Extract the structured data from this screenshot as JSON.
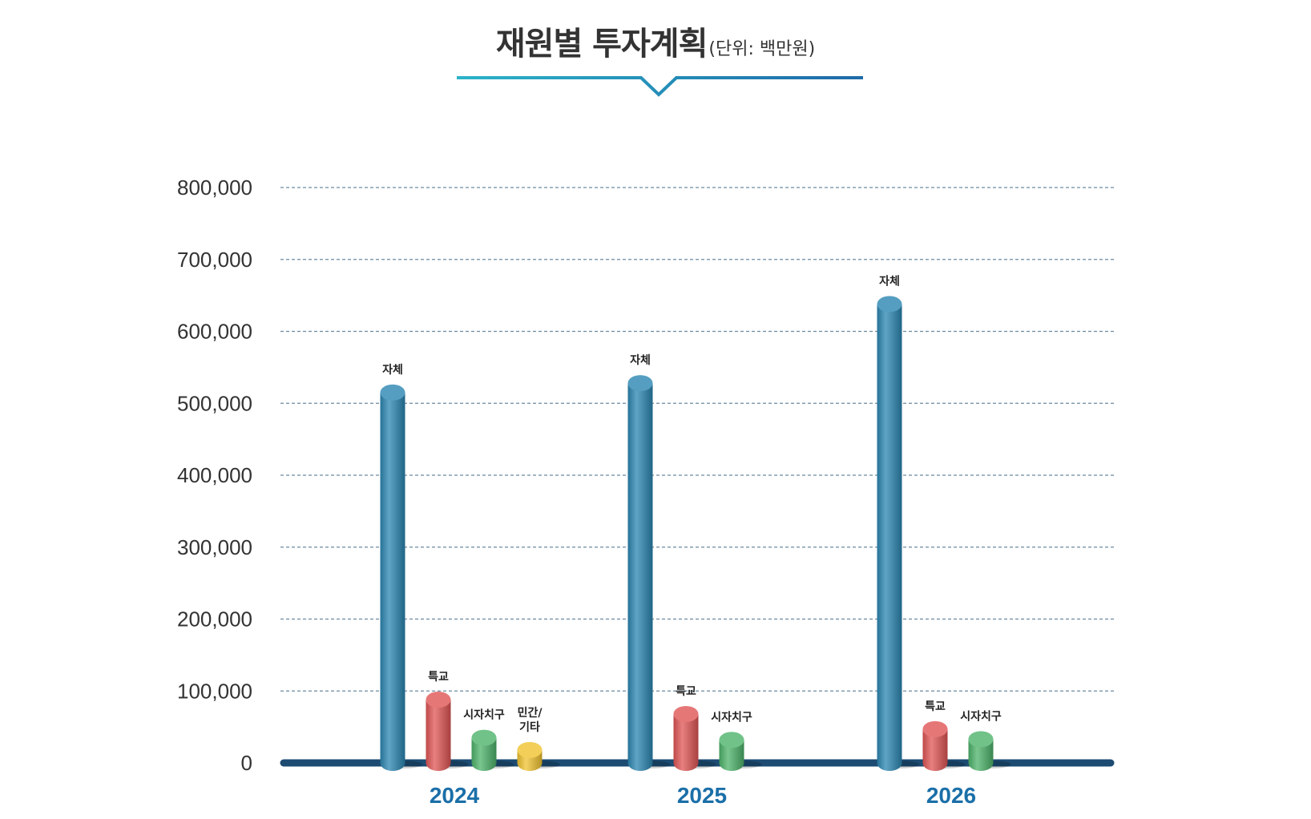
{
  "title": "재원별 투자계획",
  "unit": "(단위: 백만원)",
  "colors": {
    "title_underline_left": "#2bb3c9",
    "title_underline_right": "#1f6aa8",
    "baseline": "#1d4b72",
    "grid": "#6b8aa0",
    "year_label": "#1b6fa8",
    "자체": "#2b86b2",
    "특교": "#e05555",
    "시자치구": "#4db36a",
    "민간/기타": "#f0c330"
  },
  "chart_data": {
    "type": "bar",
    "categories": [
      "2024",
      "2025",
      "2026"
    ],
    "yticks": [
      "800,000",
      "700,000",
      "600,000",
      "500,000",
      "400,000",
      "300,000",
      "200,000",
      "100,000",
      "0"
    ],
    "ylim": [
      0,
      800000
    ],
    "grid": true,
    "groups": [
      {
        "year": "2024",
        "bars": [
          {
            "label": "자체",
            "value": 515000,
            "color_key": "자체"
          },
          {
            "label": "특교",
            "value": 88000,
            "color_key": "특교"
          },
          {
            "label": "시자치구",
            "value": 35000,
            "color_key": "시자치구"
          },
          {
            "label": "민간/\n기타",
            "value": 18000,
            "color_key": "민간/기타"
          }
        ]
      },
      {
        "year": "2025",
        "bars": [
          {
            "label": "자체",
            "value": 528000,
            "color_key": "자체"
          },
          {
            "label": "특교",
            "value": 68000,
            "color_key": "특교"
          },
          {
            "label": "시자치구",
            "value": 32000,
            "color_key": "시자치구"
          }
        ]
      },
      {
        "year": "2026",
        "bars": [
          {
            "label": "자체",
            "value": 638000,
            "color_key": "자체"
          },
          {
            "label": "특교",
            "value": 47000,
            "color_key": "특교"
          },
          {
            "label": "시자치구",
            "value": 33000,
            "color_key": "시자치구"
          }
        ]
      }
    ]
  }
}
